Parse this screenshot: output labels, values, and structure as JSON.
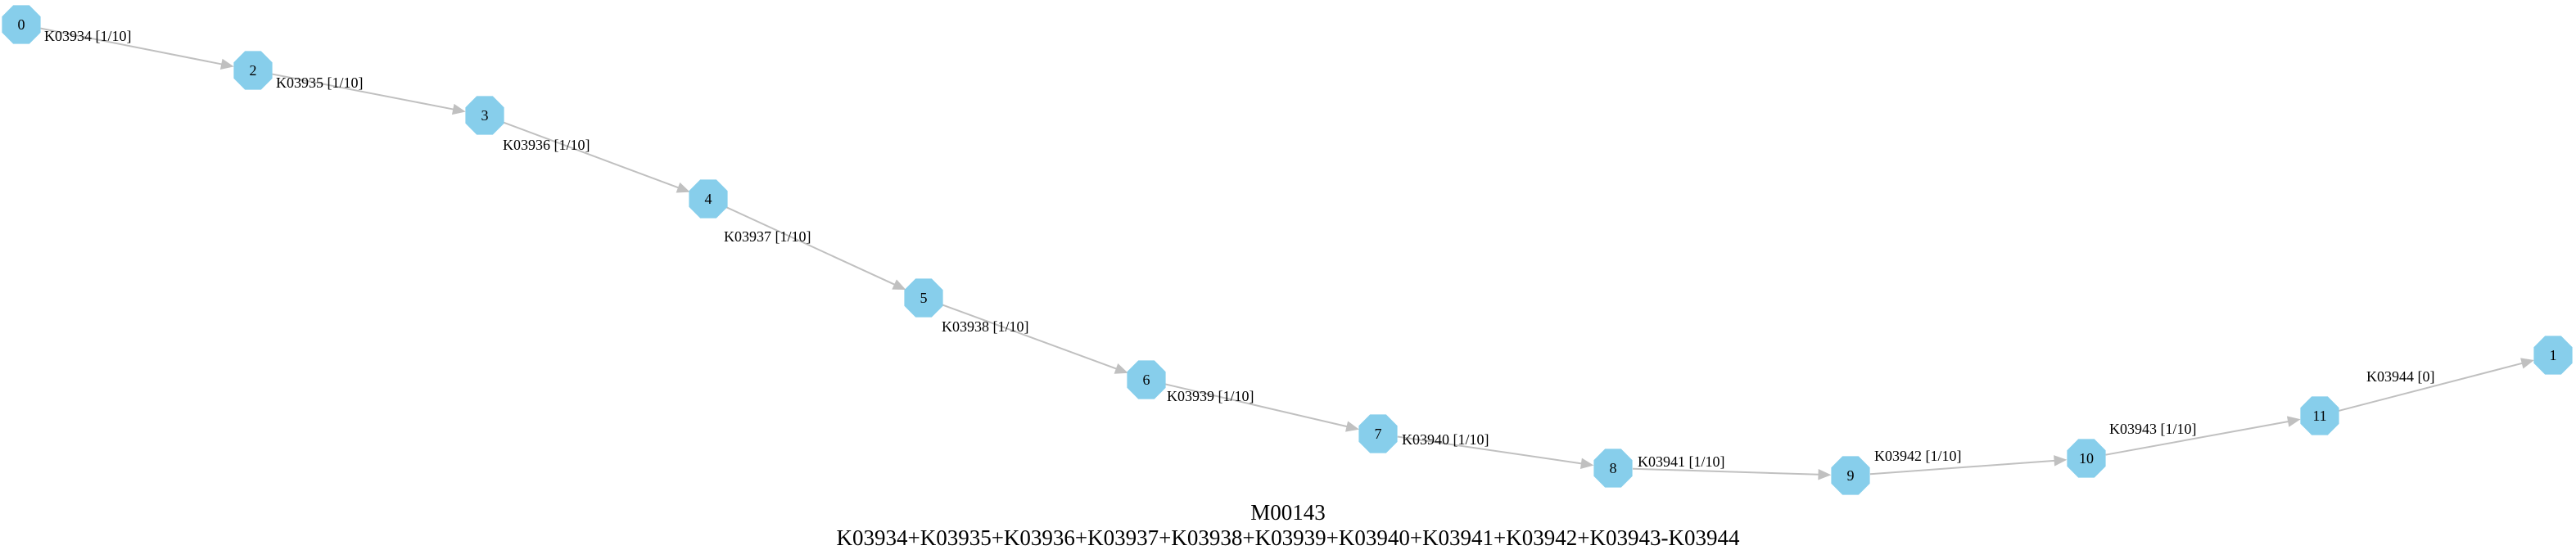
{
  "graph": {
    "title": "M00143",
    "expression": "K03934+K03935+K03936+K03937+K03938+K03939+K03940+K03941+K03942+K03943-K03944",
    "colors": {
      "node_fill": "#87ceeb",
      "edge": "#c0c0c0",
      "text": "#000000"
    },
    "nodes": [
      {
        "id": "0",
        "label": "0"
      },
      {
        "id": "2",
        "label": "2"
      },
      {
        "id": "3",
        "label": "3"
      },
      {
        "id": "4",
        "label": "4"
      },
      {
        "id": "5",
        "label": "5"
      },
      {
        "id": "6",
        "label": "6"
      },
      {
        "id": "7",
        "label": "7"
      },
      {
        "id": "8",
        "label": "8"
      },
      {
        "id": "9",
        "label": "9"
      },
      {
        "id": "10",
        "label": "10"
      },
      {
        "id": "11",
        "label": "11"
      },
      {
        "id": "1",
        "label": "1"
      }
    ],
    "edges": [
      {
        "from": "0",
        "to": "2",
        "label": "K03934 [1/10]"
      },
      {
        "from": "2",
        "to": "3",
        "label": "K03935 [1/10]"
      },
      {
        "from": "3",
        "to": "4",
        "label": "K03936 [1/10]"
      },
      {
        "from": "4",
        "to": "5",
        "label": "K03937 [1/10]"
      },
      {
        "from": "5",
        "to": "6",
        "label": "K03938 [1/10]"
      },
      {
        "from": "6",
        "to": "7",
        "label": "K03939 [1/10]"
      },
      {
        "from": "7",
        "to": "8",
        "label": "K03940 [1/10]"
      },
      {
        "from": "8",
        "to": "9",
        "label": "K03941 [1/10]"
      },
      {
        "from": "9",
        "to": "10",
        "label": "K03942 [1/10]"
      },
      {
        "from": "10",
        "to": "11",
        "label": "K03943 [1/10]"
      },
      {
        "from": "11",
        "to": "1",
        "label": "K03944 [0]"
      }
    ]
  }
}
